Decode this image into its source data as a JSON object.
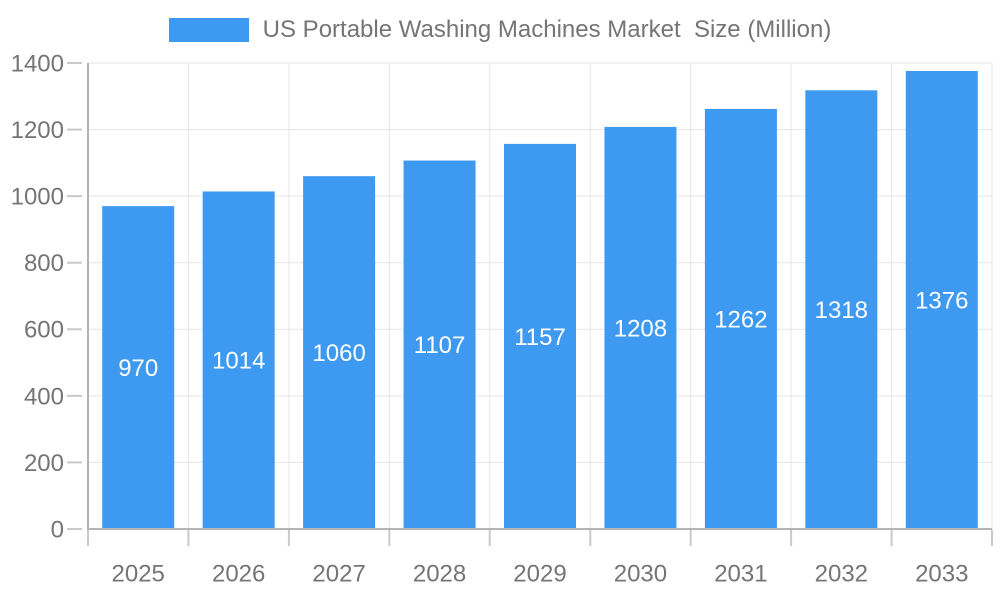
{
  "chart_data": {
    "type": "bar",
    "legend_label": "US Portable Washing Machines Market  Size (Million)",
    "categories": [
      "2025",
      "2026",
      "2027",
      "2028",
      "2029",
      "2030",
      "2031",
      "2032",
      "2033"
    ],
    "values": [
      970,
      1014,
      1060,
      1107,
      1157,
      1208,
      1262,
      1318,
      1376
    ],
    "ylim": [
      0,
      1400
    ],
    "ytick_step": 200,
    "xlabel": "",
    "ylabel": "",
    "grid": "horizontal and vertical light gridlines",
    "legend_position": "top-center",
    "value_label_position": "inside-middle"
  },
  "colors": {
    "bar": "#3d9af0",
    "axis_text": "#757575",
    "value_label_text": "#ffffff",
    "gridline": "#e6e6e6",
    "axis_line": "#b3b3b3",
    "tick": "#c9c9c9",
    "background": "#ffffff"
  }
}
